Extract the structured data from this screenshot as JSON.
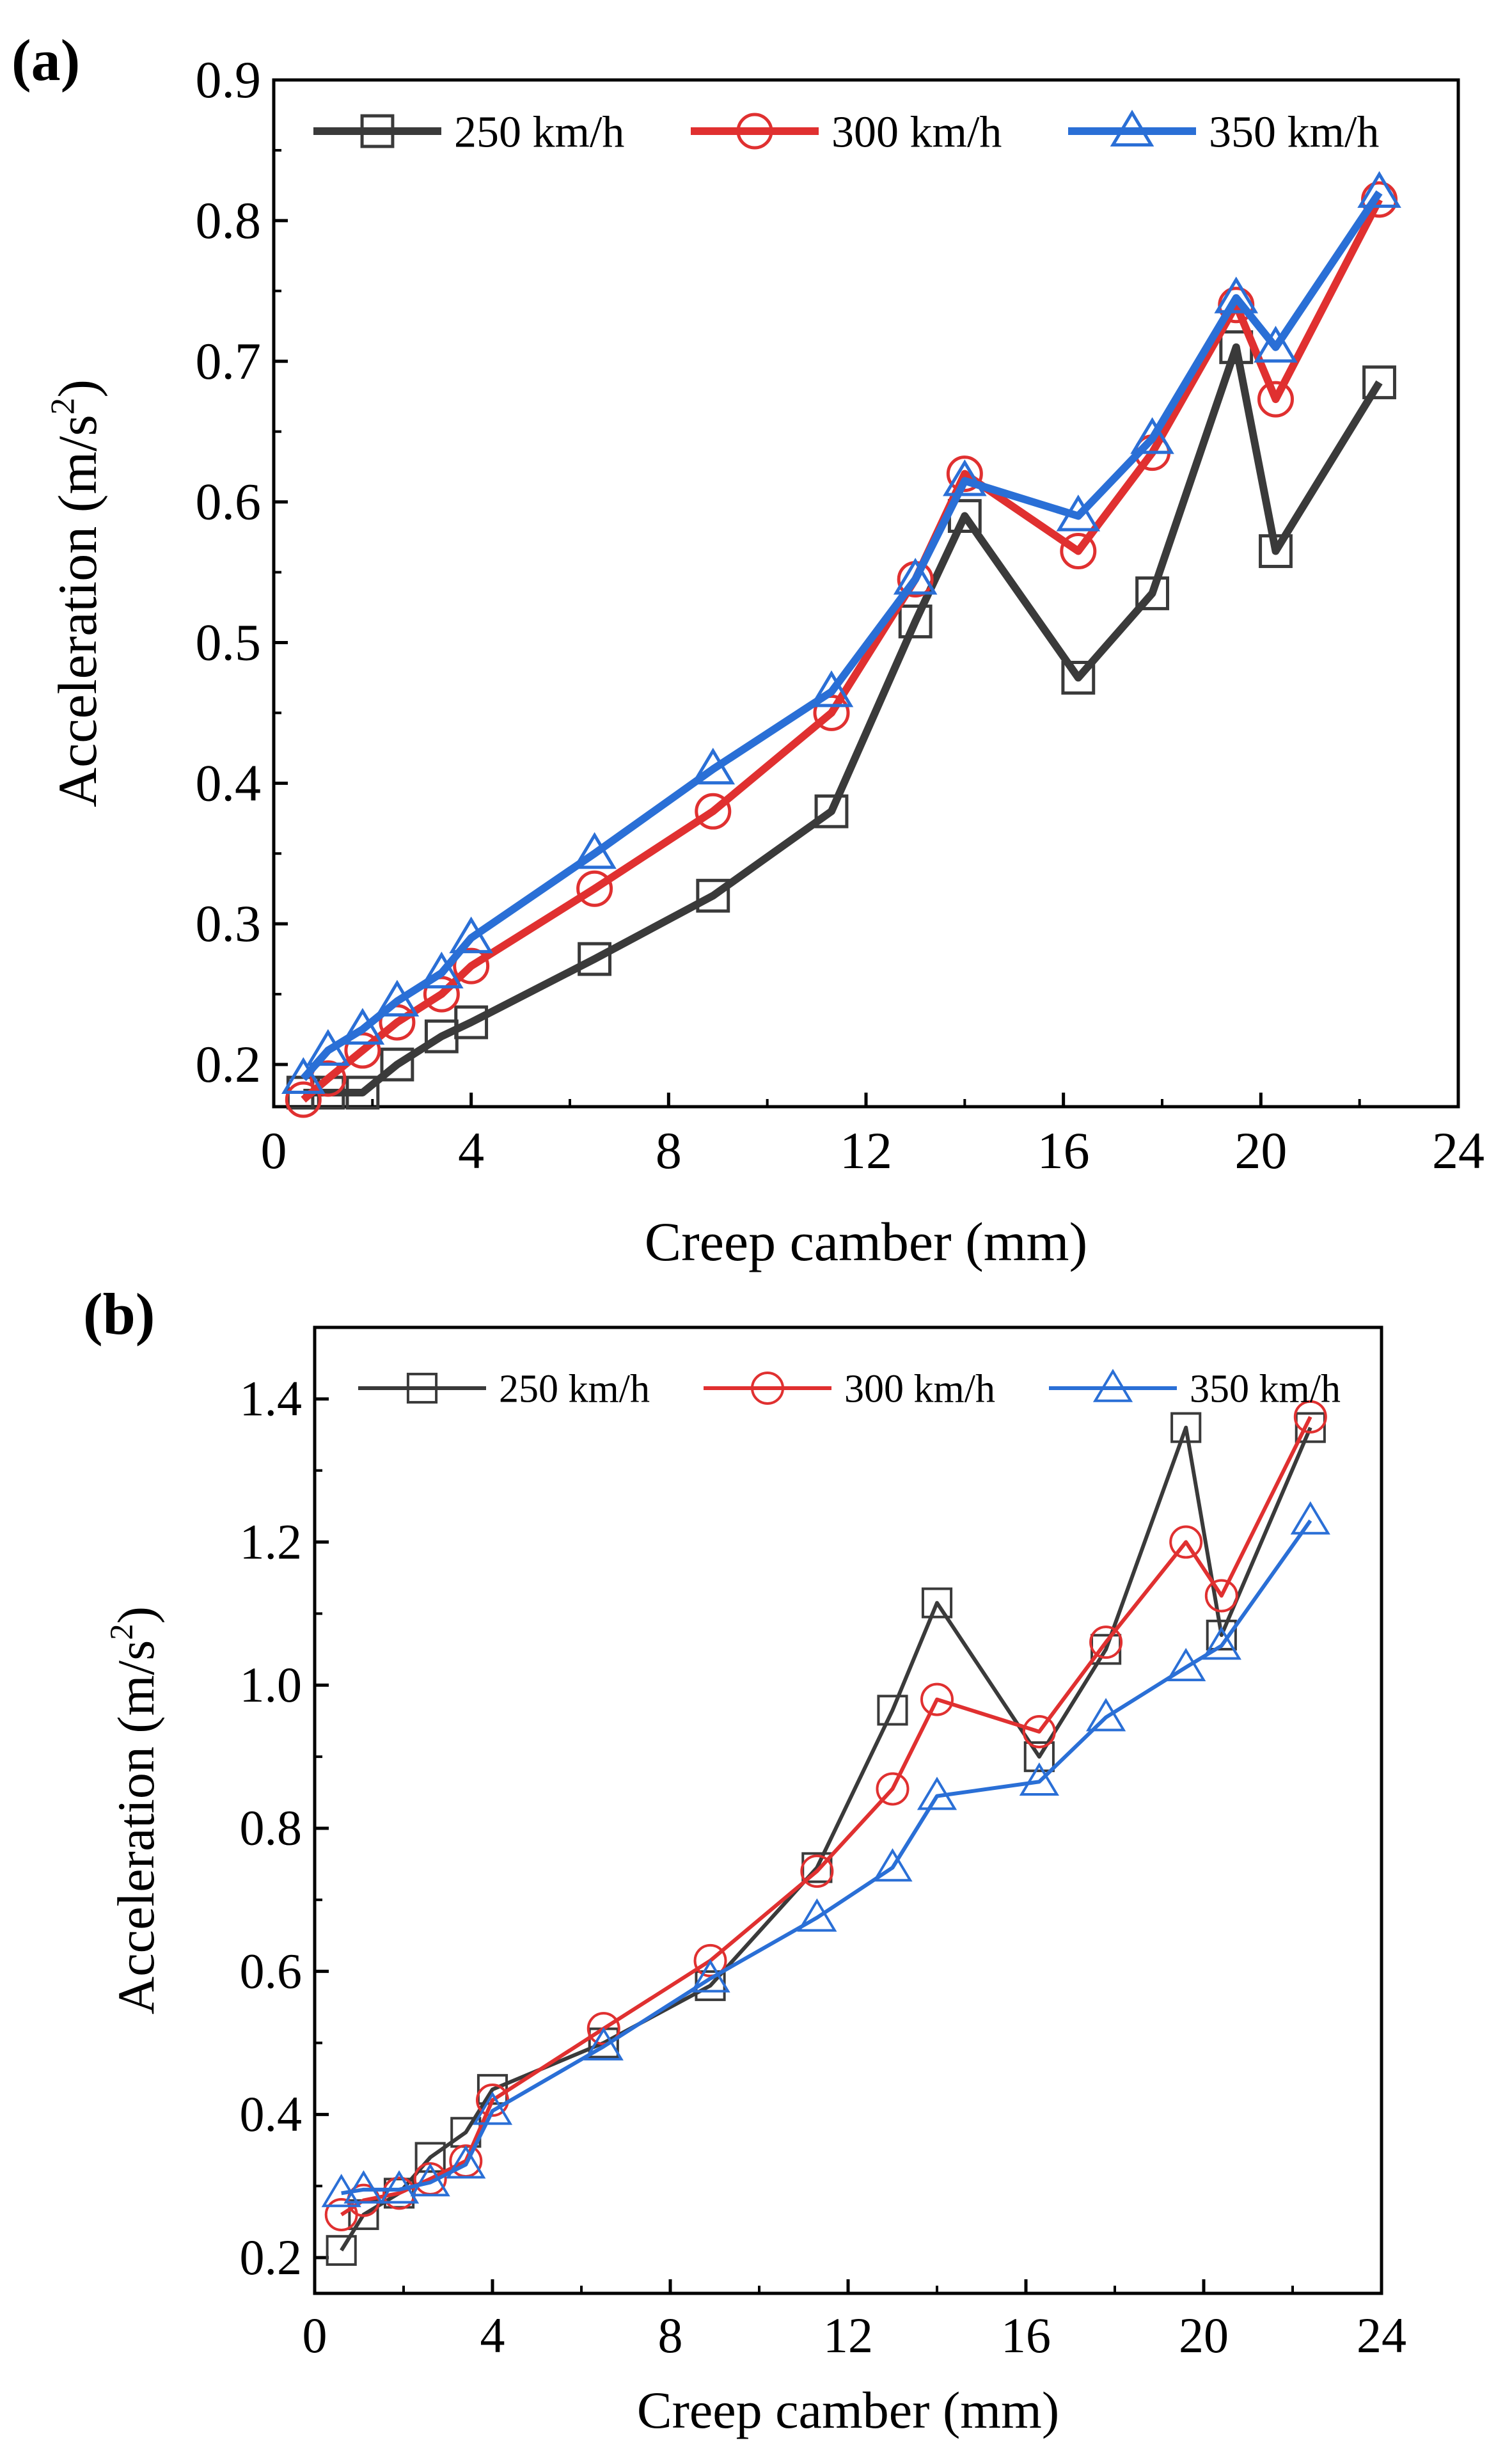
{
  "chart_data": [
    {
      "panel": "(a)",
      "type": "line",
      "xlabel": "Creep camber (mm)",
      "ylabel": "Acceleration (m/s",
      "ylabel_sup": "2",
      "ylabel_end": ")",
      "xlim": [
        0,
        24
      ],
      "ylim": [
        0.17,
        0.9
      ],
      "xticks": [
        0,
        4,
        8,
        12,
        16,
        20,
        24
      ],
      "yticks": [
        0.2,
        0.3,
        0.4,
        0.5,
        0.6,
        0.7,
        0.8,
        0.9
      ],
      "ytick_labels": [
        "0.2",
        "0.3",
        "0.4",
        "0.5",
        "0.6",
        "0.7",
        "0.8",
        "0.9"
      ],
      "grid": false,
      "legend_position": "top",
      "x": [
        0.6,
        1.1,
        1.8,
        2.5,
        3.4,
        4.0,
        6.5,
        8.9,
        11.3,
        13.0,
        14.0,
        16.3,
        17.8,
        19.5,
        20.3,
        22.4
      ],
      "series": [
        {
          "name": "250 km/h",
          "color": "#3a3a3a",
          "marker": "square",
          "values": [
            0.18,
            0.18,
            0.18,
            0.2,
            0.22,
            0.23,
            0.275,
            0.32,
            0.38,
            0.515,
            0.59,
            0.475,
            0.535,
            0.71,
            0.565,
            0.685
          ]
        },
        {
          "name": "300 km/h",
          "color": "#e03030",
          "marker": "circle",
          "values": [
            0.175,
            0.19,
            0.21,
            0.23,
            0.25,
            0.27,
            0.325,
            0.38,
            0.45,
            0.545,
            0.62,
            0.565,
            0.635,
            0.74,
            0.673,
            0.815
          ]
        },
        {
          "name": "350 km/h",
          "color": "#2a6fd6",
          "marker": "triangle",
          "values": [
            0.19,
            0.21,
            0.225,
            0.245,
            0.265,
            0.29,
            0.35,
            0.41,
            0.465,
            0.545,
            0.615,
            0.59,
            0.645,
            0.745,
            0.71,
            0.82
          ]
        }
      ]
    },
    {
      "panel": "(b)",
      "type": "line",
      "xlabel": "Creep camber (mm)",
      "ylabel": "Acceleration (m/s",
      "ylabel_sup": "2",
      "ylabel_end": ")",
      "xlim": [
        0,
        24
      ],
      "ylim": [
        0.15,
        1.5
      ],
      "xticks": [
        0,
        4,
        8,
        12,
        16,
        20,
        24
      ],
      "yticks": [
        0.2,
        0.4,
        0.6,
        0.8,
        1.0,
        1.2,
        1.4
      ],
      "ytick_labels": [
        "0.2",
        "0.4",
        "0.6",
        "0.8",
        "1.0",
        "1.2",
        "1.4"
      ],
      "grid": false,
      "legend_position": "top",
      "x": [
        0.6,
        1.1,
        1.9,
        2.6,
        3.4,
        4.0,
        6.5,
        8.9,
        11.3,
        13.0,
        14.0,
        16.3,
        17.8,
        19.6,
        20.4,
        22.4
      ],
      "series": [
        {
          "name": "250 km/h",
          "color": "#3a3a3a",
          "marker": "square",
          "values": [
            0.21,
            0.26,
            0.29,
            0.34,
            0.375,
            0.435,
            0.5,
            0.58,
            0.745,
            0.965,
            1.115,
            0.9,
            1.05,
            1.36,
            1.07,
            1.36
          ]
        },
        {
          "name": "300 km/h",
          "color": "#e03030",
          "marker": "circle",
          "values": [
            0.26,
            0.28,
            0.29,
            0.31,
            0.335,
            0.42,
            0.52,
            0.615,
            0.74,
            0.855,
            0.98,
            0.935,
            1.06,
            1.2,
            1.125,
            1.375
          ]
        },
        {
          "name": "350 km/h",
          "color": "#2a6fd6",
          "marker": "triangle",
          "values": [
            0.29,
            0.295,
            0.295,
            0.305,
            0.33,
            0.405,
            0.495,
            0.59,
            0.675,
            0.745,
            0.845,
            0.865,
            0.955,
            1.025,
            1.055,
            1.23
          ]
        }
      ]
    }
  ]
}
